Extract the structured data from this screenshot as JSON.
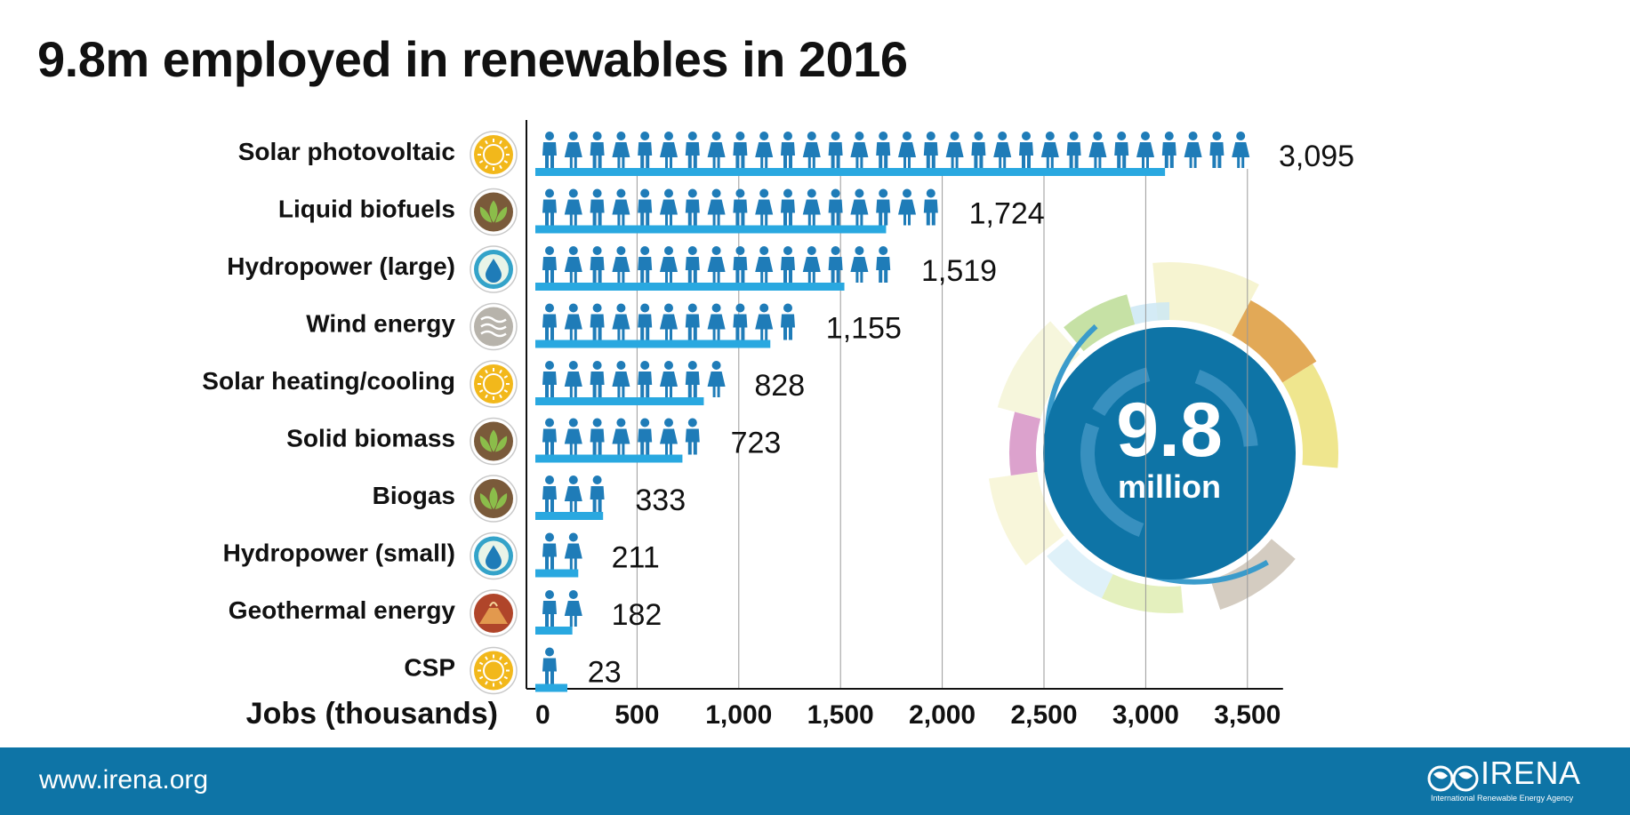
{
  "title": "9.8m employed in renewables in 2016",
  "chart_data": {
    "type": "bar",
    "orientation": "horizontal",
    "title": "9.8m employed in renewables in 2016",
    "xlabel": "Jobs (thousands)",
    "ylabel": "",
    "xlim": [
      0,
      3500
    ],
    "x_ticks": [
      0,
      500,
      1000,
      1500,
      2000,
      2500,
      3000,
      3500
    ],
    "x_tick_labels": [
      "0",
      "500",
      "1,000",
      "1,500",
      "2,000",
      "2,500",
      "3,000",
      "3,500"
    ],
    "grid": "vertical",
    "categories": [
      {
        "label": "Solar photovoltaic",
        "icon": "sun-icon"
      },
      {
        "label": "Liquid biofuels",
        "icon": "leaf-icon"
      },
      {
        "label": "Hydropower (large)",
        "icon": "water-drop-icon"
      },
      {
        "label": "Wind energy",
        "icon": "wind-icon"
      },
      {
        "label": "Solar heating/cooling",
        "icon": "sun-icon"
      },
      {
        "label": "Solid biomass",
        "icon": "leaf-icon"
      },
      {
        "label": "Biogas",
        "icon": "leaf-icon"
      },
      {
        "label": "Hydropower (small)",
        "icon": "water-drop-icon"
      },
      {
        "label": "Geothermal energy",
        "icon": "volcano-icon"
      },
      {
        "label": "CSP",
        "icon": "sun-icon"
      }
    ],
    "values": [
      3095,
      1724,
      1519,
      1155,
      828,
      723,
      333,
      211,
      182,
      23
    ],
    "value_labels": [
      "3,095",
      "1,724",
      "1,519",
      "1,155",
      "828",
      "723",
      "333",
      "211",
      "182",
      "23"
    ],
    "person_counts": [
      30,
      17,
      15,
      11,
      8,
      7,
      3,
      2,
      2,
      1
    ]
  },
  "total": {
    "value": "9.8",
    "unit": "million"
  },
  "colors": {
    "bar": "#29a8e0",
    "person": "#1f7cb8",
    "circle": "#0e74a6",
    "footer": "#0e74a6"
  },
  "footer": {
    "url": "www.irena.org",
    "logo_text": "IRENA",
    "logo_subtitle": "International Renewable Energy Agency"
  }
}
